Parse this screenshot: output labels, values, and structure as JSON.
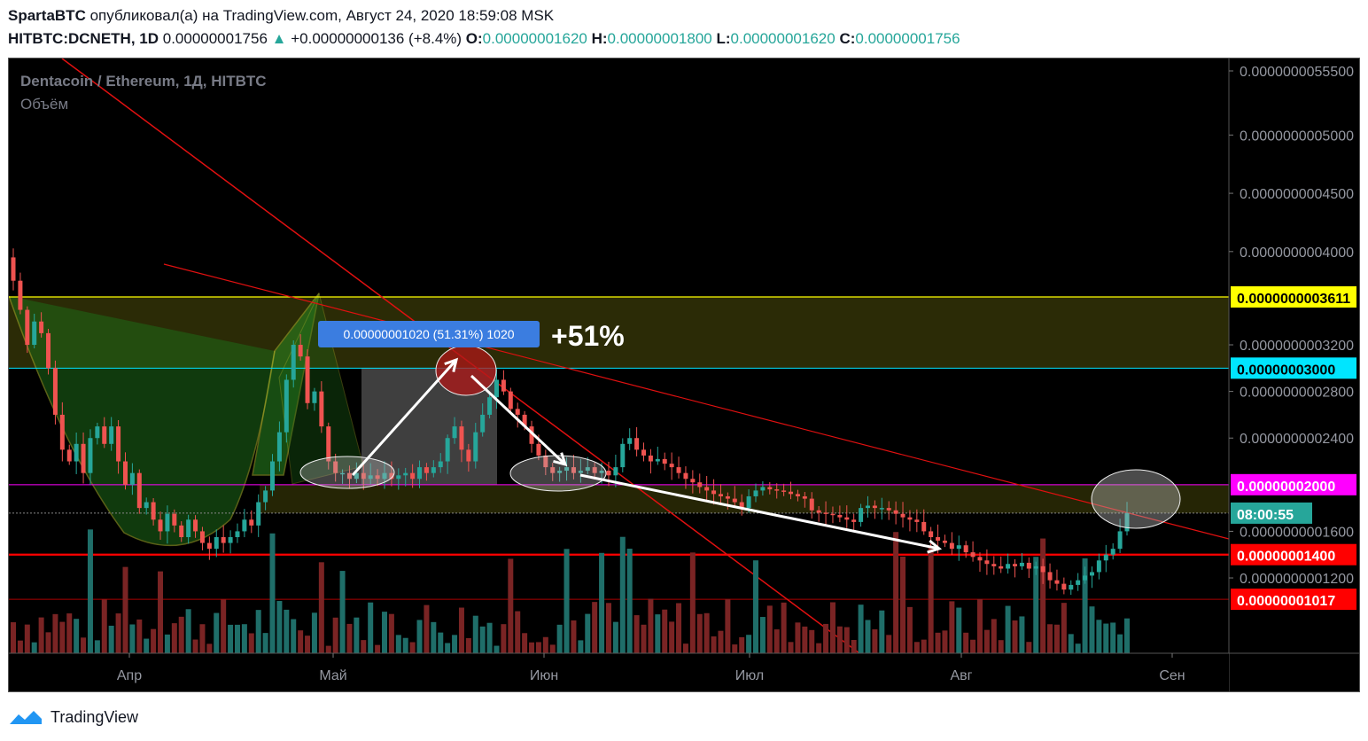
{
  "header": {
    "author": "SpartaBTC",
    "published_text": "опубликовал(а) на TradingView.com, Август 24, 2020 18:59:08 MSK",
    "symbol": "HITBTC:DCNETH, 1D",
    "last": "0.00000001756",
    "change": "+0.00000000136 (+8.4%)",
    "o_label": "O:",
    "o": "0.00000001620",
    "h_label": "H:",
    "h": "0.00000001800",
    "l_label": "L:",
    "l": "0.00000001620",
    "c_label": "C:",
    "c": "0.00000001756"
  },
  "chart_data": {
    "type": "candlestick",
    "title": "Dentacoin / Ethereum, 1Д, HITBTC",
    "subtitle": "Объём",
    "y_axis_ticks": [
      "0.0000000055500",
      "0.0000000005000",
      "0.0000000004500",
      "0.0000000004000",
      "0.0000000003200",
      "0.0000000002800",
      "0.0000000002400",
      "0.0000000001600",
      "0.0000000001200"
    ],
    "y_axis_tick_prices": [
      5.55,
      5.0,
      4.5,
      4.0,
      3.2,
      2.8,
      2.4,
      1.6,
      1.2
    ],
    "x_axis_labels": [
      "Апр",
      "Май",
      "Июн",
      "Июл",
      "Авг",
      "Сен"
    ],
    "price_labels": [
      {
        "text": "0.0000000003611",
        "price": 3.611,
        "color": "#ffff00",
        "text_color": "#000000"
      },
      {
        "text": "0.00000003000",
        "price": 3.0,
        "color": "#00e5ff",
        "text_color": "#000000"
      },
      {
        "text": "0.00000002000",
        "price": 2.0,
        "color": "#ff00ff",
        "text_color": "#ffffff"
      },
      {
        "text": "08:00:55",
        "price": 1.756,
        "color": "#26a69a",
        "text_color": "#ffffff"
      },
      {
        "text": "0.00000001400",
        "price": 1.4,
        "color": "#ff0000",
        "text_color": "#ffffff"
      },
      {
        "text": "0.00000001017",
        "price": 1.017,
        "color": "#ff0000",
        "text_color": "#ffffff"
      }
    ],
    "measure_label": "0.00000001020 (51.31%) 1020",
    "annotation": "+51%",
    "series": [
      {
        "name": "close",
        "values": [
          3.75,
          3.5,
          3.2,
          3.4,
          3.3,
          3.0,
          2.6,
          2.3,
          2.2,
          2.35,
          2.1,
          2.4,
          2.5,
          2.35,
          2.5,
          2.2,
          2.0,
          2.1,
          1.8,
          1.85,
          1.7,
          1.6,
          1.75,
          1.65,
          1.55,
          1.7,
          1.6,
          1.5,
          1.45,
          1.55,
          1.5,
          1.55,
          1.6,
          1.7,
          1.65,
          1.85,
          1.95,
          2.2,
          2.45,
          2.9,
          3.2,
          3.1,
          2.7,
          2.8,
          2.5,
          2.2,
          2.1,
          2.1,
          2.05,
          2.1,
          2.05,
          2.08,
          2.05,
          2.1,
          2.05,
          2.08,
          2.1,
          2.05,
          2.15,
          2.1,
          2.15,
          2.2,
          2.4,
          2.5,
          2.3,
          2.2,
          2.45,
          2.6,
          2.75,
          2.9,
          2.8,
          2.65,
          2.6,
          2.5,
          2.35,
          2.25,
          2.15,
          2.1,
          2.12,
          2.15,
          2.1,
          2.12,
          2.15,
          2.1,
          2.12,
          2.08,
          2.15,
          2.35,
          2.4,
          2.3,
          2.25,
          2.2,
          2.22,
          2.18,
          2.15,
          2.1,
          2.05,
          2.02,
          1.98,
          1.95,
          1.92,
          1.9,
          1.88,
          1.85,
          1.8,
          1.9,
          1.95,
          1.98,
          1.96,
          1.95,
          1.94,
          1.92,
          1.9,
          1.88,
          1.78,
          1.76,
          1.75,
          1.74,
          1.72,
          1.7,
          1.68,
          1.8,
          1.82,
          1.8,
          1.8,
          1.78,
          1.75,
          1.72,
          1.7,
          1.68,
          1.6,
          1.55,
          1.52,
          1.5,
          1.45,
          1.48,
          1.42,
          1.38,
          1.35,
          1.32,
          1.3,
          1.28,
          1.32,
          1.3,
          1.33,
          1.28,
          1.3,
          1.25,
          1.18,
          1.15,
          1.1,
          1.14,
          1.18,
          1.22,
          1.25,
          1.35,
          1.4,
          1.45,
          1.6,
          1.756
        ]
      }
    ]
  }
}
